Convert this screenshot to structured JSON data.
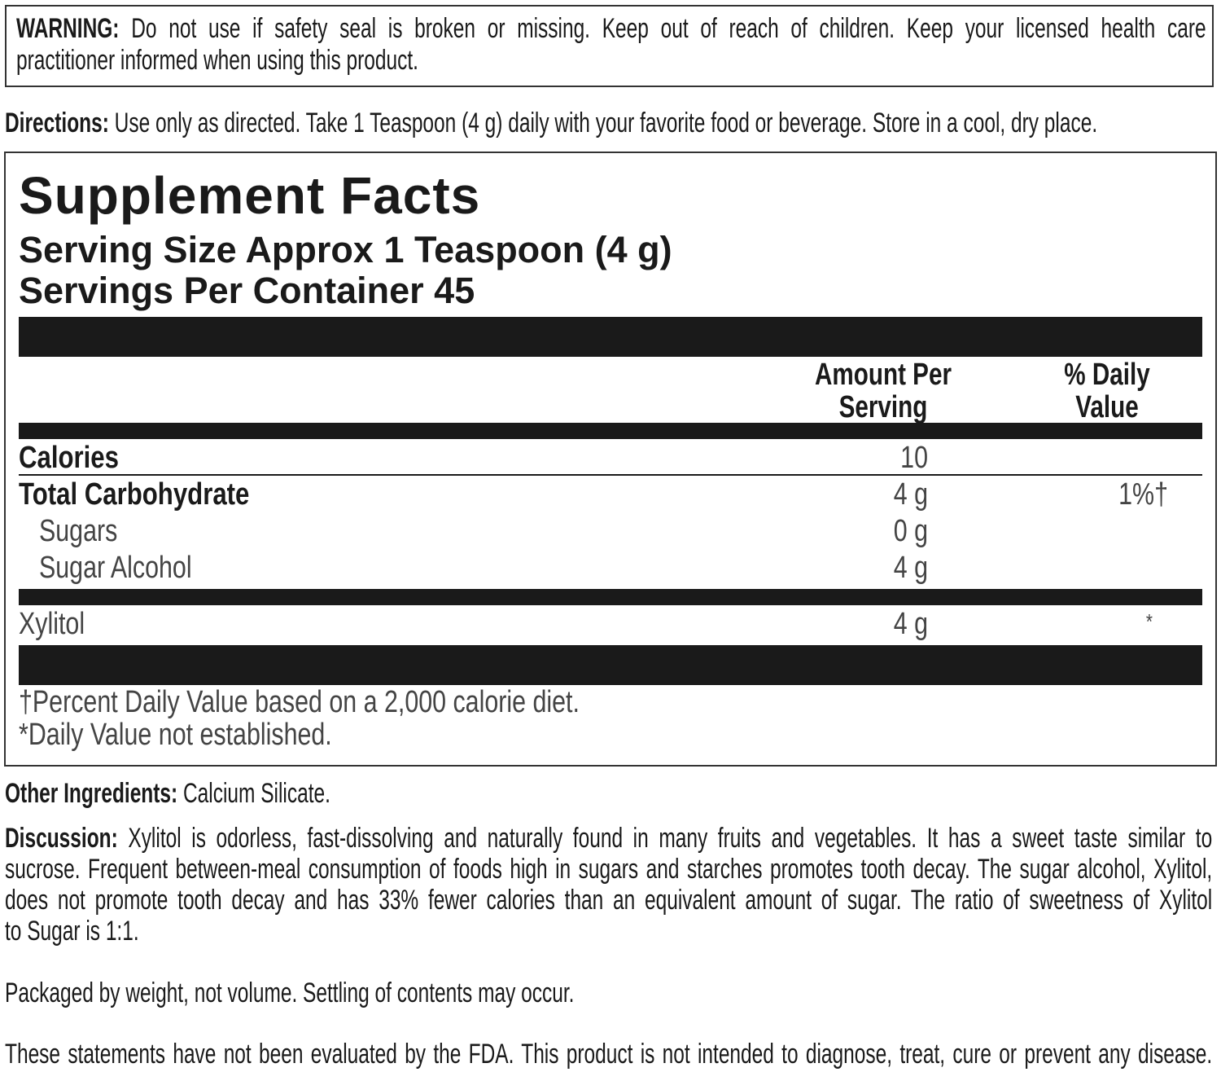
{
  "warning": {
    "label": "WARNING:",
    "line1": "Do not use if safety seal is broken or missing.  Keep out of reach of children. Keep your licensed health care",
    "line2": "practitioner informed when using this product."
  },
  "directions": {
    "label": "Directions:",
    "text": "Use only as directed. Take 1 Teaspoon (4 g) daily with your favorite food or beverage. Store in a cool, dry place."
  },
  "facts": {
    "title": "Supplement Facts",
    "serving_size": "Serving Size Approx 1 Teaspoon (4 g)",
    "servings_per_container": "Servings Per Container 45",
    "col_amount": [
      "Amount Per",
      "Serving"
    ],
    "col_dv": [
      "% Daily",
      "Value"
    ],
    "rows": [
      {
        "name": "Calories",
        "amount": "10",
        "dv": ""
      },
      {
        "name": "Total Carbohydrate",
        "amount": "4 g",
        "dv": "1%†"
      },
      {
        "name": "Sugars",
        "amount": "0 g",
        "dv": ""
      },
      {
        "name": "Sugar Alcohol",
        "amount": "4 g",
        "dv": ""
      },
      {
        "name": "Xylitol",
        "amount": "4 g",
        "dv": "*"
      }
    ],
    "footnote1": "†Percent Daily Value based on a 2,000 calorie diet.",
    "footnote2": "*Daily Value not established."
  },
  "other_ingredients": {
    "label": "Other Ingredients:",
    "text": "Calcium Silicate."
  },
  "discussion": {
    "label": "Discussion:",
    "lines": [
      "Xylitol is odorless, fast-dissolving and naturally found in many fruits and vegetables. It has a sweet taste similar to",
      "sucrose. Frequent between-meal consumption of foods high in sugars and starches promotes tooth decay. The sugar alcohol, Xylitol,",
      "does not promote tooth decay and has 33% fewer calories than an equivalent amount of sugar. The ratio of sweetness of Xylitol",
      "to Sugar is 1:1."
    ]
  },
  "packaged": "Packaged by weight, not volume. Settling of contents may occur.",
  "fda": "These statements have not been evaluated by the FDA. This product is not intended to diagnose, treat, cure or prevent any disease."
}
